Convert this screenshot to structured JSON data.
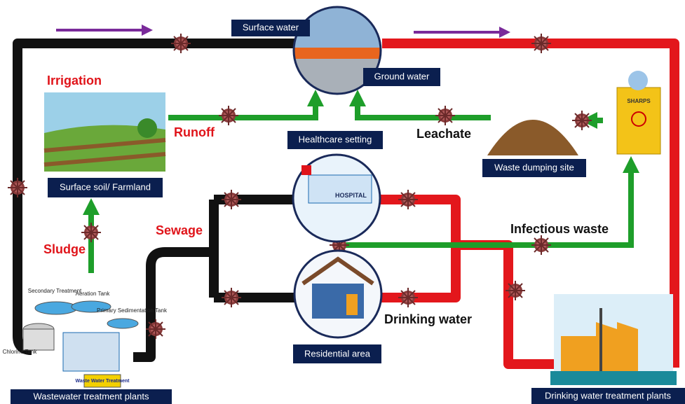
{
  "labels": {
    "surface_water": "Surface water",
    "ground_water": "Ground water",
    "healthcare": "Healthcare setting",
    "waste_dump": "Waste dumping site",
    "farmland": "Surface soil/ Farmland",
    "residential": "Residential area",
    "wwtp": "Wastewater treatment plants",
    "dwtp": "Drinking water treatment plants"
  },
  "captions": {
    "irrigation": "Irrigation",
    "runoff": "Runoff",
    "leachate": "Leachate",
    "sewage": "Sewage",
    "sludge": "Sludge",
    "infectious": "Infectious waste",
    "drinking": "Drinking water"
  },
  "illustration": {
    "hospital": "HOSPITAL",
    "sharps": "SHARPS",
    "secondary": "Secondary Treatment",
    "aeration": "Aeration Tank",
    "primary": "Primary Sedimentation Tank",
    "chlorine": "Chlorine Tank",
    "plant_sign": "Waste Water Treatment"
  }
}
